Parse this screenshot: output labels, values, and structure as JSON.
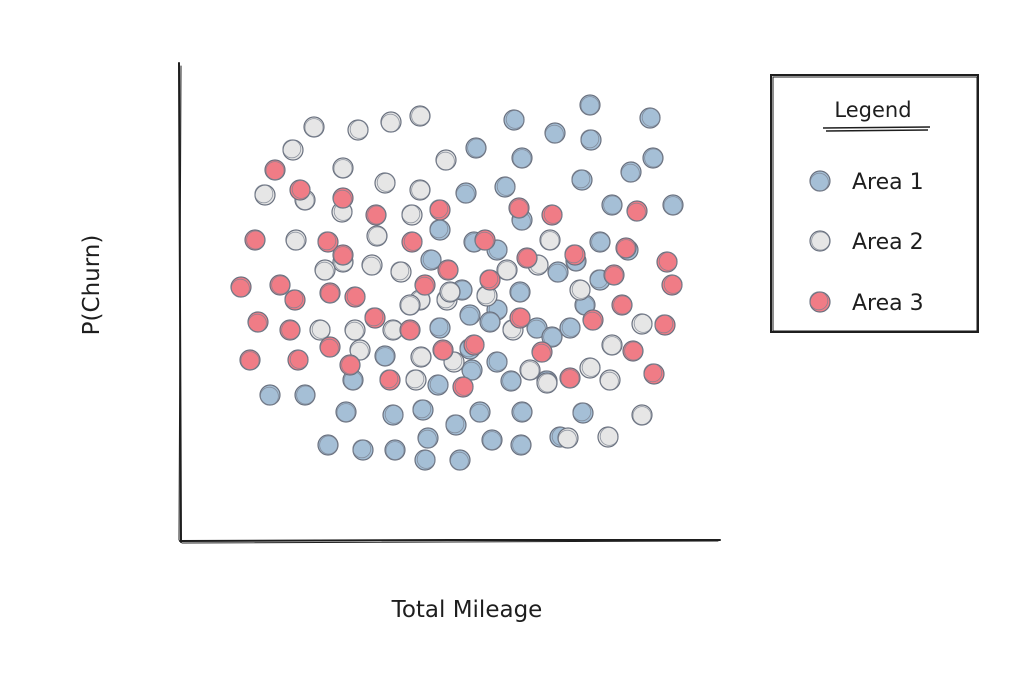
{
  "chart_data": {
    "type": "scatter",
    "title": "",
    "xlabel": "Total Mileage",
    "ylabel": "P(Churn)",
    "legend": {
      "title": "Legend",
      "position": "right",
      "entries": [
        {
          "name": "Area 1",
          "color": "#a5bfd6"
        },
        {
          "name": "Area 2",
          "color": "#e6e6e6"
        },
        {
          "name": "Area 3",
          "color": "#f07c86"
        }
      ]
    },
    "grid": false,
    "series": [
      {
        "name": "Area 1",
        "color": "#a5bfd6",
        "points": [
          [
            590,
            105
          ],
          [
            514,
            120
          ],
          [
            555,
            133
          ],
          [
            476,
            148
          ],
          [
            591,
            140
          ],
          [
            522,
            158
          ],
          [
            650,
            118
          ],
          [
            631,
            172
          ],
          [
            653,
            158
          ],
          [
            582,
            180
          ],
          [
            673,
            205
          ],
          [
            505,
            187
          ],
          [
            466,
            193
          ],
          [
            612,
            205
          ],
          [
            440,
            230
          ],
          [
            474,
            242
          ],
          [
            497,
            250
          ],
          [
            522,
            220
          ],
          [
            600,
            242
          ],
          [
            628,
            250
          ],
          [
            576,
            261
          ],
          [
            431,
            260
          ],
          [
            558,
            272
          ],
          [
            462,
            290
          ],
          [
            600,
            280
          ],
          [
            520,
            292
          ],
          [
            497,
            310
          ],
          [
            470,
            315
          ],
          [
            490,
            322
          ],
          [
            440,
            328
          ],
          [
            585,
            305
          ],
          [
            570,
            328
          ],
          [
            537,
            328
          ],
          [
            552,
            337
          ],
          [
            470,
            349
          ],
          [
            385,
            356
          ],
          [
            497,
            362
          ],
          [
            472,
            370
          ],
          [
            511,
            381
          ],
          [
            547,
            381
          ],
          [
            353,
            380
          ],
          [
            438,
            385
          ],
          [
            270,
            395
          ],
          [
            305,
            395
          ],
          [
            423,
            410
          ],
          [
            346,
            412
          ],
          [
            393,
            415
          ],
          [
            480,
            412
          ],
          [
            522,
            412
          ],
          [
            456,
            425
          ],
          [
            492,
            440
          ],
          [
            560,
            437
          ],
          [
            428,
            438
          ],
          [
            328,
            445
          ],
          [
            363,
            450
          ],
          [
            395,
            450
          ],
          [
            425,
            460
          ],
          [
            460,
            460
          ],
          [
            521,
            445
          ],
          [
            583,
            413
          ]
        ]
      },
      {
        "name": "Area 2",
        "color": "#e6e6e6",
        "points": [
          [
            314,
            127
          ],
          [
            358,
            130
          ],
          [
            391,
            122
          ],
          [
            420,
            116
          ],
          [
            293,
            150
          ],
          [
            343,
            168
          ],
          [
            385,
            183
          ],
          [
            446,
            160
          ],
          [
            420,
            190
          ],
          [
            265,
            195
          ],
          [
            305,
            200
          ],
          [
            342,
            212
          ],
          [
            296,
            240
          ],
          [
            377,
            236
          ],
          [
            412,
            215
          ],
          [
            550,
            240
          ],
          [
            538,
            265
          ],
          [
            372,
            265
          ],
          [
            343,
            262
          ],
          [
            401,
            272
          ],
          [
            507,
            270
          ],
          [
            580,
            290
          ],
          [
            325,
            270
          ],
          [
            420,
            300
          ],
          [
            447,
            300
          ],
          [
            410,
            305
          ],
          [
            320,
            330
          ],
          [
            355,
            330
          ],
          [
            393,
            330
          ],
          [
            513,
            330
          ],
          [
            612,
            345
          ],
          [
            642,
            324
          ],
          [
            360,
            350
          ],
          [
            421,
            357
          ],
          [
            454,
            362
          ],
          [
            530,
            370
          ],
          [
            590,
            368
          ],
          [
            610,
            380
          ],
          [
            547,
            383
          ],
          [
            416,
            380
          ],
          [
            642,
            415
          ],
          [
            608,
            437
          ],
          [
            568,
            438
          ],
          [
            450,
            292
          ],
          [
            487,
            296
          ]
        ]
      },
      {
        "name": "Area 3",
        "color": "#f07c86",
        "points": [
          [
            275,
            170
          ],
          [
            300,
            190
          ],
          [
            343,
            198
          ],
          [
            376,
            215
          ],
          [
            440,
            210
          ],
          [
            519,
            208
          ],
          [
            552,
            215
          ],
          [
            637,
            211
          ],
          [
            255,
            240
          ],
          [
            328,
            242
          ],
          [
            343,
            255
          ],
          [
            412,
            242
          ],
          [
            485,
            240
          ],
          [
            527,
            258
          ],
          [
            575,
            255
          ],
          [
            626,
            248
          ],
          [
            667,
            262
          ],
          [
            241,
            287
          ],
          [
            280,
            285
          ],
          [
            295,
            300
          ],
          [
            330,
            293
          ],
          [
            355,
            297
          ],
          [
            425,
            285
          ],
          [
            448,
            270
          ],
          [
            490,
            280
          ],
          [
            614,
            275
          ],
          [
            672,
            285
          ],
          [
            258,
            322
          ],
          [
            290,
            330
          ],
          [
            375,
            318
          ],
          [
            410,
            330
          ],
          [
            520,
            318
          ],
          [
            593,
            320
          ],
          [
            622,
            305
          ],
          [
            665,
            325
          ],
          [
            250,
            360
          ],
          [
            298,
            360
          ],
          [
            330,
            347
          ],
          [
            350,
            365
          ],
          [
            390,
            380
          ],
          [
            443,
            350
          ],
          [
            474,
            345
          ],
          [
            542,
            352
          ],
          [
            633,
            351
          ],
          [
            654,
            374
          ],
          [
            570,
            378
          ],
          [
            463,
            387
          ]
        ]
      }
    ]
  }
}
